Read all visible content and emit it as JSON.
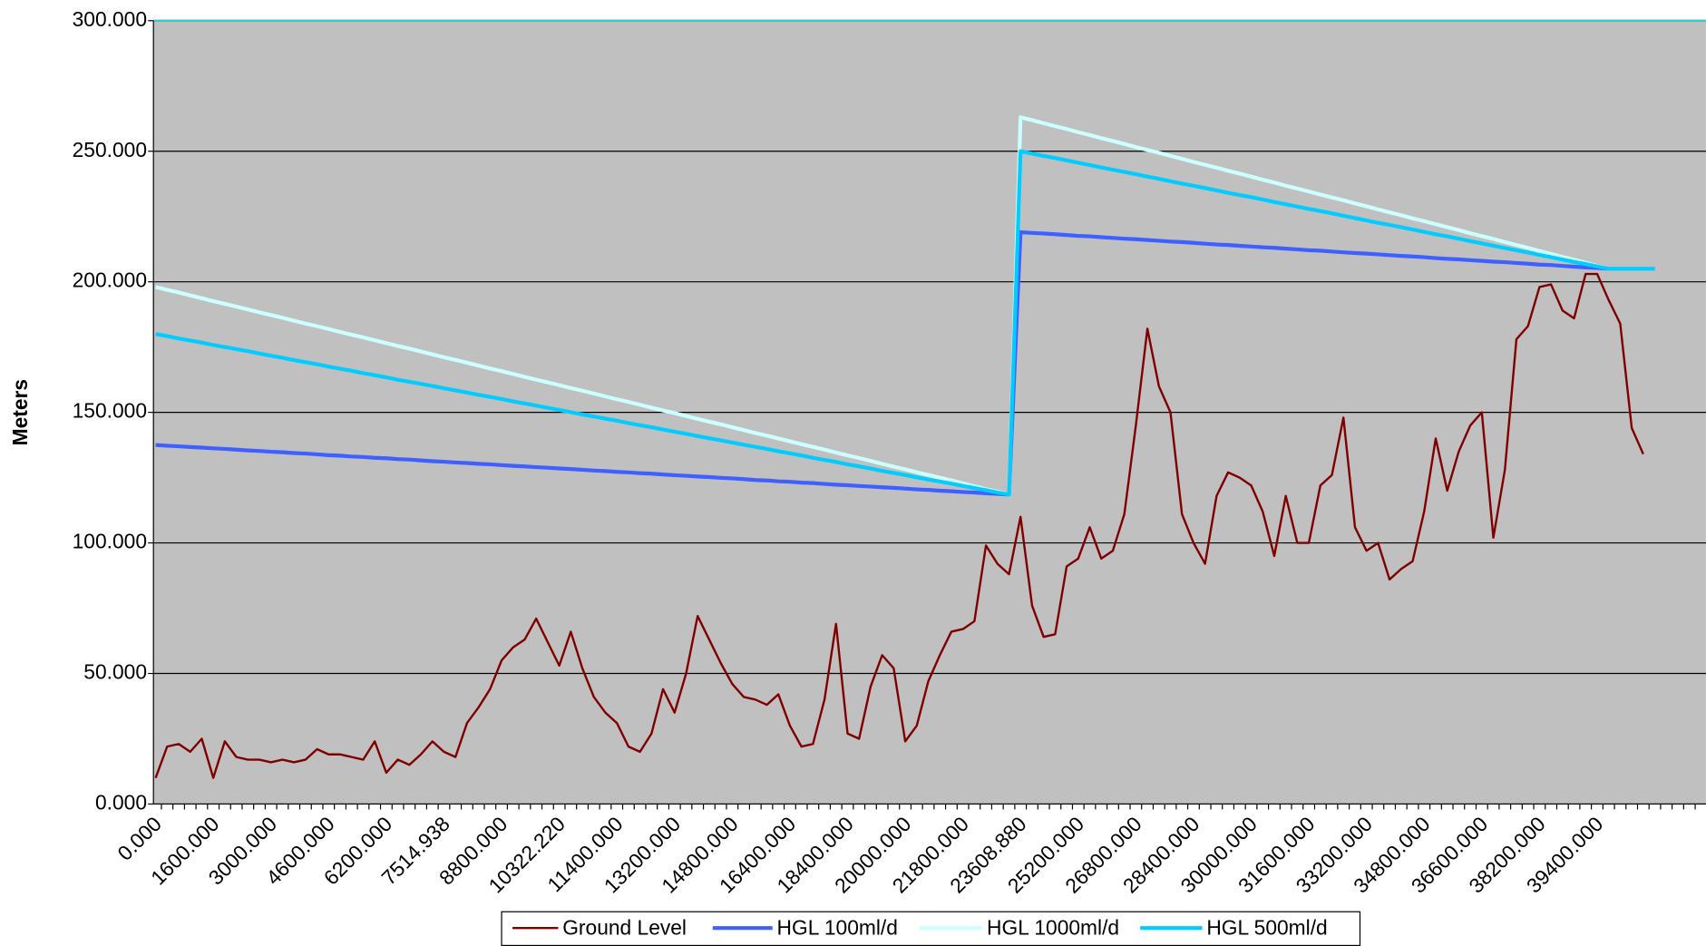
{
  "chart_data": {
    "type": "line",
    "y_label": "Meters",
    "categories": [
      "0.000",
      null,
      null,
      null,
      null,
      "1600.000",
      null,
      null,
      null,
      null,
      "3000.000",
      null,
      null,
      null,
      null,
      "4600.000",
      null,
      null,
      null,
      null,
      "6200.000",
      null,
      null,
      null,
      null,
      "7514.938",
      null,
      null,
      null,
      null,
      "8800.000",
      null,
      null,
      null,
      null,
      "10322.220",
      null,
      null,
      null,
      null,
      "11400.000",
      null,
      null,
      null,
      null,
      "13200.000",
      null,
      null,
      null,
      null,
      "14800.000",
      null,
      null,
      null,
      null,
      "16400.000",
      null,
      null,
      null,
      null,
      "18400.000",
      null,
      null,
      null,
      null,
      "20000.000",
      null,
      null,
      null,
      null,
      "21800.000",
      null,
      null,
      null,
      null,
      "23608.880",
      null,
      null,
      null,
      null,
      "25200.000",
      null,
      null,
      null,
      null,
      "26800.000",
      null,
      null,
      null,
      null,
      "28400.000",
      null,
      null,
      null,
      null,
      "30000.000",
      null,
      null,
      null,
      null,
      "31600.000",
      null,
      null,
      null,
      null,
      "33200.000",
      null,
      null,
      null,
      null,
      "34800.000",
      null,
      null,
      null,
      null,
      "36600.000",
      null,
      null,
      null,
      null,
      "38200.000",
      null,
      null,
      null,
      null,
      "39400.000",
      null,
      null,
      null,
      null,
      null,
      null,
      null,
      null,
      null
    ],
    "series": [
      {
        "name": "Ground Level",
        "color": "#800000",
        "values": [
          10,
          22,
          23,
          20,
          25,
          10,
          24,
          18,
          17,
          17,
          16,
          17,
          16,
          17,
          21,
          19,
          19,
          18,
          17,
          24,
          12,
          17,
          15,
          19,
          24,
          20,
          18,
          31,
          37,
          44,
          55,
          60,
          63,
          71,
          62,
          53,
          66,
          52,
          41,
          35,
          31,
          22,
          20,
          27,
          44,
          35,
          50,
          72,
          63,
          54,
          46,
          41,
          40,
          38,
          42,
          30,
          22,
          23,
          40,
          69,
          27,
          25,
          45,
          57,
          52,
          24,
          30,
          47,
          57,
          66,
          67,
          70,
          99,
          92,
          88,
          110,
          76,
          64,
          65,
          91,
          94,
          106,
          94,
          97,
          111,
          145,
          182,
          160,
          150,
          111,
          100,
          92,
          118,
          127,
          125,
          122,
          112,
          95,
          118,
          100,
          100,
          122,
          126,
          148,
          106,
          97,
          100,
          86,
          90,
          93,
          112,
          140,
          120,
          135,
          145,
          150,
          102,
          128,
          178,
          183,
          198,
          199,
          189,
          186,
          203,
          203,
          193,
          184,
          144,
          134,
          null,
          null,
          null,
          null,
          null
        ]
      },
      {
        "name": "HGL 100ml/d",
        "color": "#3f5fff",
        "values": [
          137.5,
          137.2,
          137.0,
          136.7,
          136.5,
          136.2,
          136.0,
          135.7,
          135.4,
          135.2,
          134.9,
          134.7,
          134.4,
          134.2,
          133.9,
          133.6,
          133.4,
          133.1,
          132.9,
          132.6,
          132.4,
          132.1,
          131.9,
          131.6,
          131.3,
          131.1,
          130.8,
          130.6,
          130.3,
          130.1,
          129.8,
          129.5,
          129.3,
          129.0,
          128.8,
          128.5,
          128.3,
          128.0,
          127.7,
          127.5,
          127.2,
          127.0,
          126.7,
          126.5,
          126.2,
          125.9,
          125.7,
          125.4,
          125.2,
          124.9,
          124.7,
          124.4,
          124.1,
          123.9,
          123.6,
          123.4,
          123.1,
          122.9,
          122.6,
          122.3,
          122.1,
          121.8,
          121.6,
          121.3,
          121.1,
          120.8,
          120.5,
          120.3,
          120.0,
          119.8,
          119.5,
          119.3,
          119.0,
          118.8,
          118.5,
          219.0,
          218.7,
          218.5,
          218.2,
          217.9,
          217.6,
          217.4,
          217.1,
          216.8,
          216.5,
          216.3,
          216.0,
          215.7,
          215.4,
          215.2,
          214.9,
          214.6,
          214.3,
          214.1,
          213.8,
          213.5,
          213.2,
          213.0,
          212.7,
          212.4,
          212.1,
          211.9,
          211.6,
          211.3,
          211.0,
          210.8,
          210.5,
          210.2,
          209.9,
          209.7,
          209.4,
          209.1,
          208.8,
          208.6,
          208.3,
          208.0,
          207.7,
          207.5,
          207.2,
          206.9,
          206.6,
          206.4,
          206.1,
          205.8,
          205.5,
          205.3,
          205.0,
          205.0,
          205.0,
          205.0,
          205.0,
          null,
          null,
          null,
          null
        ]
      },
      {
        "name": "HGL 1000ml/d",
        "color": "#ccffff",
        "values": [
          198.0,
          196.9,
          195.9,
          194.8,
          193.7,
          192.6,
          191.6,
          190.5,
          189.4,
          188.3,
          187.3,
          186.2,
          185.1,
          184.0,
          183.0,
          181.9,
          180.8,
          179.7,
          178.7,
          177.6,
          176.5,
          175.4,
          174.4,
          173.3,
          172.2,
          171.1,
          170.1,
          169.0,
          167.9,
          166.8,
          165.8,
          164.7,
          163.6,
          162.5,
          161.5,
          160.4,
          159.3,
          158.3,
          157.2,
          156.1,
          155.0,
          154.0,
          152.9,
          151.8,
          150.7,
          149.7,
          148.6,
          147.5,
          146.4,
          145.4,
          144.3,
          143.2,
          142.1,
          141.1,
          140.0,
          138.9,
          137.8,
          136.8,
          135.7,
          134.6,
          133.5,
          132.5,
          131.4,
          130.3,
          129.2,
          128.2,
          127.1,
          126.0,
          124.9,
          123.9,
          122.8,
          121.7,
          120.6,
          119.6,
          118.5,
          263.0,
          261.9,
          260.7,
          259.6,
          258.5,
          257.3,
          256.2,
          255.0,
          253.9,
          252.8,
          251.6,
          250.5,
          249.4,
          248.2,
          247.1,
          245.9,
          244.8,
          243.7,
          242.5,
          241.4,
          240.3,
          239.1,
          238.0,
          236.8,
          235.7,
          234.6,
          233.4,
          232.3,
          231.2,
          230.0,
          228.9,
          227.7,
          226.6,
          225.5,
          224.3,
          223.2,
          222.1,
          220.9,
          219.8,
          218.6,
          217.5,
          216.4,
          215.2,
          214.1,
          213.0,
          211.8,
          210.7,
          209.5,
          208.4,
          207.3,
          206.1,
          205.0,
          205.0,
          205.0,
          205.0,
          205.0,
          null,
          null,
          null,
          null
        ]
      },
      {
        "name": "HGL 500ml/d",
        "color": "#00ccff",
        "values": [
          180.0,
          179.2,
          178.3,
          177.5,
          176.7,
          175.8,
          175.0,
          174.2,
          173.4,
          172.5,
          171.7,
          170.9,
          170.0,
          169.2,
          168.4,
          167.5,
          166.7,
          165.9,
          165.0,
          164.2,
          163.4,
          162.5,
          161.7,
          160.9,
          160.1,
          159.2,
          158.4,
          157.6,
          156.7,
          155.9,
          155.1,
          154.2,
          153.4,
          152.6,
          151.7,
          150.9,
          150.1,
          149.2,
          148.4,
          147.6,
          146.8,
          145.9,
          145.1,
          144.3,
          143.4,
          142.6,
          141.8,
          140.9,
          140.1,
          139.3,
          138.4,
          137.6,
          136.8,
          136.0,
          135.1,
          134.3,
          133.5,
          132.6,
          131.8,
          131.0,
          130.1,
          129.3,
          128.5,
          127.6,
          126.8,
          126.0,
          125.1,
          124.3,
          123.5,
          122.7,
          121.8,
          121.0,
          120.2,
          119.3,
          118.5,
          250.0,
          249.1,
          248.2,
          247.4,
          246.5,
          245.6,
          244.7,
          243.8,
          242.9,
          242.1,
          241.2,
          240.3,
          239.4,
          238.5,
          237.6,
          236.8,
          235.9,
          235.0,
          234.1,
          233.2,
          232.4,
          231.5,
          230.6,
          229.7,
          228.8,
          227.9,
          227.1,
          226.2,
          225.3,
          224.4,
          223.5,
          222.6,
          221.8,
          220.9,
          220.0,
          219.1,
          218.2,
          217.4,
          216.5,
          215.6,
          214.7,
          213.8,
          212.9,
          212.1,
          211.2,
          210.3,
          209.4,
          208.5,
          207.6,
          206.8,
          205.9,
          205.0,
          205.0,
          205.0,
          205.0,
          205.0,
          null,
          null,
          null,
          null
        ]
      }
    ],
    "ylim": [
      0,
      300
    ],
    "yticks": [
      {
        "value": 0,
        "label": "0.000"
      },
      {
        "value": 50,
        "label": "50.000"
      },
      {
        "value": 100,
        "label": "100.000"
      },
      {
        "value": 150,
        "label": "150.000"
      },
      {
        "value": 200,
        "label": "200.000"
      },
      {
        "value": 250,
        "label": "250.000"
      },
      {
        "value": 300,
        "label": "300.000"
      }
    ],
    "grid": true,
    "legend": "bottom"
  }
}
